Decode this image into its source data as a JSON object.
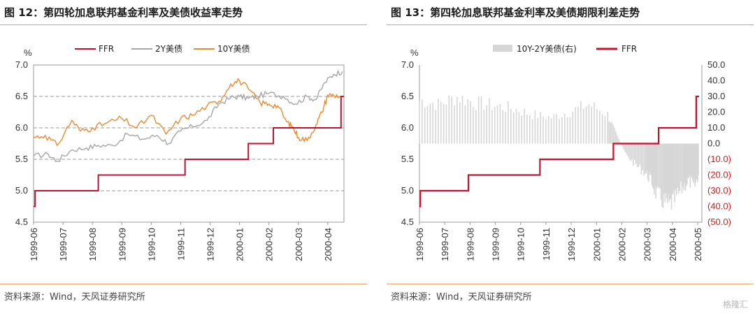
{
  "colors": {
    "ffr": "#c8102e",
    "y2": "#a6a6a6",
    "y10": "#ed8a2e",
    "spread": "#d6d6d6",
    "rule": "#e7a466",
    "neg": "#d42020"
  },
  "left": {
    "title": "图 12：第四轮加息联邦基金利率及美债收益率走势",
    "source": "资料来源：Wind，天风证券研究所"
  },
  "right": {
    "title": "图 13：第四轮加息联邦基金利率及美债期限利差走势",
    "source": "资料来源：Wind，天风证券研究所"
  },
  "watermark": "格隆汇",
  "chart_data": [
    {
      "type": "line",
      "ylabel": "%",
      "ylim": [
        4.5,
        7.0
      ],
      "yticks": [
        "4.5",
        "5.0",
        "5.5",
        "6.0",
        "6.5",
        "7.0"
      ],
      "grid": true,
      "legend_placement": "top",
      "x_labels": [
        "1999-06",
        "1999-07",
        "1999-08",
        "1999-09",
        "1999-10",
        "1999-11",
        "1999-12",
        "2000-01",
        "2000-02",
        "2000-03",
        "2000-04"
      ],
      "series": [
        {
          "name": "FFR",
          "step": true,
          "x": [
            0,
            0.05,
            2.2,
            5.15,
            7.3,
            8.15,
            10.4,
            10.45,
            10.55
          ],
          "y": [
            4.75,
            5.0,
            5.25,
            5.5,
            5.75,
            6.0,
            6.0,
            6.5,
            6.5
          ]
        },
        {
          "name": "2Y美债",
          "x": [
            0,
            0.5,
            0.8,
            1.3,
            1.8,
            2.2,
            2.7,
            3.2,
            3.7,
            4.2,
            4.6,
            5.0,
            5.4,
            5.9,
            6.3,
            6.7,
            7.0,
            7.3,
            7.6,
            8.0,
            8.5,
            8.9,
            9.3,
            9.6,
            9.9,
            10.2,
            10.5
          ],
          "y": [
            5.55,
            5.58,
            5.47,
            5.65,
            5.68,
            5.72,
            5.72,
            5.9,
            5.82,
            5.88,
            5.75,
            5.95,
            6.02,
            6.12,
            6.38,
            6.48,
            6.5,
            6.47,
            6.5,
            6.55,
            6.5,
            6.38,
            6.5,
            6.45,
            6.72,
            6.85,
            6.9
          ]
        },
        {
          "name": "10Y美债",
          "x": [
            0,
            0.4,
            0.8,
            1.3,
            1.6,
            2.0,
            2.5,
            3.0,
            3.5,
            4.0,
            4.5,
            5.0,
            5.4,
            5.9,
            6.3,
            6.7,
            7.0,
            7.3,
            7.7,
            8.0,
            8.3,
            8.6,
            8.8,
            9.0,
            9.3,
            9.6,
            9.8,
            10.0,
            10.2,
            10.5
          ],
          "y": [
            5.85,
            5.88,
            5.72,
            6.12,
            5.95,
            6.0,
            6.08,
            6.15,
            6.0,
            6.2,
            5.9,
            6.15,
            6.2,
            6.35,
            6.42,
            6.7,
            6.75,
            6.62,
            6.4,
            6.38,
            6.35,
            6.1,
            6.02,
            5.85,
            5.8,
            6.05,
            6.25,
            6.52,
            6.52,
            6.5
          ]
        }
      ]
    },
    {
      "type": "bar+line",
      "ylabel": "%",
      "ylim": [
        4.5,
        7.0
      ],
      "yticks": [
        "4.5",
        "5.0",
        "5.5",
        "6.0",
        "6.5",
        "7.0"
      ],
      "y2lim": [
        -50,
        50
      ],
      "y2ticks": [
        "(50.0)",
        "(40.0)",
        "(30.0)",
        "(20.0)",
        "(10.0)",
        "0.0",
        "10.0",
        "20.0",
        "30.0",
        "40.0",
        "50.0"
      ],
      "grid": false,
      "legend_placement": "top",
      "x_labels": [
        "1999-06",
        "1999-07",
        "1999-08",
        "1999-09",
        "1999-10",
        "1999-11",
        "1999-12",
        "2000-01",
        "2000-02",
        "2000-03",
        "2000-04",
        "2000-05"
      ],
      "series": [
        {
          "name": "FFR",
          "step": true,
          "x": [
            0,
            0.05,
            2.6,
            6.4,
            10.3,
            12.7,
            14.65,
            14.7,
            14.85
          ],
          "y": [
            4.75,
            5.0,
            5.25,
            5.5,
            5.75,
            6.0,
            6.0,
            6.5,
            6.5
          ]
        },
        {
          "name": "10Y-2Y美债(右)",
          "axis": "right",
          "x": [
            0,
            1,
            2,
            3,
            4,
            5,
            6,
            7,
            8,
            9,
            10,
            10.5,
            11,
            11.5,
            12,
            12.3,
            12.6,
            13,
            13.3,
            13.6,
            14,
            14.3,
            14.6,
            14.85
          ],
          "y": [
            30,
            27,
            32,
            28,
            26,
            24,
            20,
            18,
            22,
            27,
            20,
            5,
            -8,
            -15,
            -20,
            -25,
            -35,
            -40,
            -42,
            -38,
            -30,
            -25,
            -30,
            -20
          ]
        }
      ]
    }
  ]
}
